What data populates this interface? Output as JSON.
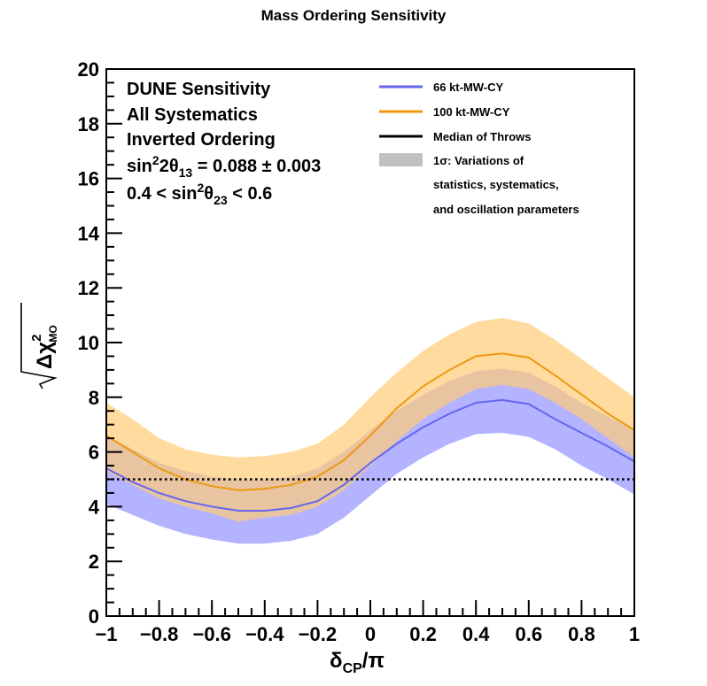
{
  "chart_data": {
    "type": "line",
    "title": "Mass Ordering Sensitivity",
    "xlabel": "δ_CP/π",
    "ylabel": "√Δχ²_MO",
    "xlim": [
      -1,
      1
    ],
    "ylim": [
      0,
      20
    ],
    "x_ticks": [
      "−1",
      "−0.8",
      "−0.6",
      "−0.4",
      "−0.2",
      "0",
      "0.2",
      "0.4",
      "0.6",
      "0.8",
      "1"
    ],
    "y_ticks": [
      "0",
      "2",
      "4",
      "6",
      "8",
      "10",
      "12",
      "14",
      "16",
      "18",
      "20"
    ],
    "grid": false,
    "annotations": [
      "DUNE Sensitivity",
      "All Systematics",
      "Inverted Ordering"
    ],
    "annotation_sin13": {
      "main": "sin",
      "sup1": "2",
      "mid": "2θ",
      "sub": "13",
      "tail": " = 0.088 ± 0.003"
    },
    "annotation_sin23": {
      "lead": "0.4 < sin",
      "sup": "2",
      "mid": "θ",
      "sub": "23",
      "tail": " < 0.6"
    },
    "threshold_line": {
      "y": 5,
      "style": "dotted",
      "color": "#000000"
    },
    "legend": {
      "placement": "top-right",
      "entries": [
        {
          "label": "66 kt-MW-CY",
          "kind": "line",
          "color": "#6666ee"
        },
        {
          "label": "100 kt-MW-CY",
          "kind": "line",
          "color": "#ee9911"
        },
        {
          "label": "Median of Throws",
          "kind": "line",
          "color": "#000000"
        },
        {
          "label": "1σ: Variations of",
          "kind": "box",
          "color": "#c0c0c0"
        },
        {
          "label": "statistics, systematics,",
          "kind": "none"
        },
        {
          "label": "and oscillation parameters",
          "kind": "none"
        }
      ]
    },
    "series": [
      {
        "name": "66 kt-MW-CY",
        "line_color": "#6666ee",
        "band_color": "#9999ff",
        "x": [
          -1,
          -0.9,
          -0.8,
          -0.7,
          -0.6,
          -0.5,
          -0.4,
          -0.3,
          -0.2,
          -0.1,
          0,
          0.1,
          0.2,
          0.3,
          0.4,
          0.5,
          0.6,
          0.7,
          0.8,
          0.9,
          1
        ],
        "median": [
          5.4,
          4.9,
          4.5,
          4.2,
          4.0,
          3.85,
          3.85,
          3.95,
          4.2,
          4.8,
          5.6,
          6.3,
          6.9,
          7.4,
          7.8,
          7.9,
          7.75,
          7.2,
          6.7,
          6.2,
          5.65
        ],
        "lower": [
          4.1,
          3.7,
          3.3,
          3.0,
          2.8,
          2.65,
          2.65,
          2.75,
          3.0,
          3.6,
          4.4,
          5.2,
          5.8,
          6.3,
          6.65,
          6.7,
          6.55,
          6.1,
          5.5,
          5.0,
          4.45
        ],
        "upper": [
          6.6,
          6.1,
          5.6,
          5.3,
          5.1,
          5.0,
          5.0,
          5.1,
          5.4,
          6.0,
          6.8,
          7.5,
          8.1,
          8.6,
          8.95,
          9.05,
          8.9,
          8.4,
          7.8,
          7.3,
          6.8
        ]
      },
      {
        "name": "100 kt-MW-CY",
        "line_color": "#ee9911",
        "band_color": "#ffcc77",
        "x": [
          -1,
          -0.9,
          -0.8,
          -0.7,
          -0.6,
          -0.5,
          -0.4,
          -0.3,
          -0.2,
          -0.1,
          0,
          0.1,
          0.2,
          0.3,
          0.4,
          0.5,
          0.6,
          0.7,
          0.8,
          0.9,
          1
        ],
        "median": [
          6.6,
          6.0,
          5.4,
          5.0,
          4.75,
          4.6,
          4.65,
          4.8,
          5.1,
          5.7,
          6.6,
          7.6,
          8.4,
          9.0,
          9.5,
          9.6,
          9.45,
          8.8,
          8.1,
          7.4,
          6.8
        ],
        "lower": [
          5.3,
          4.8,
          4.3,
          4.0,
          3.75,
          3.45,
          3.6,
          3.7,
          4.0,
          4.6,
          5.5,
          6.4,
          7.2,
          7.8,
          8.3,
          8.45,
          8.3,
          7.8,
          7.2,
          6.5,
          5.8
        ],
        "upper": [
          7.8,
          7.2,
          6.5,
          6.1,
          5.9,
          5.8,
          5.85,
          6.0,
          6.3,
          7.0,
          8.0,
          8.9,
          9.7,
          10.3,
          10.75,
          10.9,
          10.7,
          10.1,
          9.4,
          8.7,
          8.0
        ]
      }
    ]
  }
}
